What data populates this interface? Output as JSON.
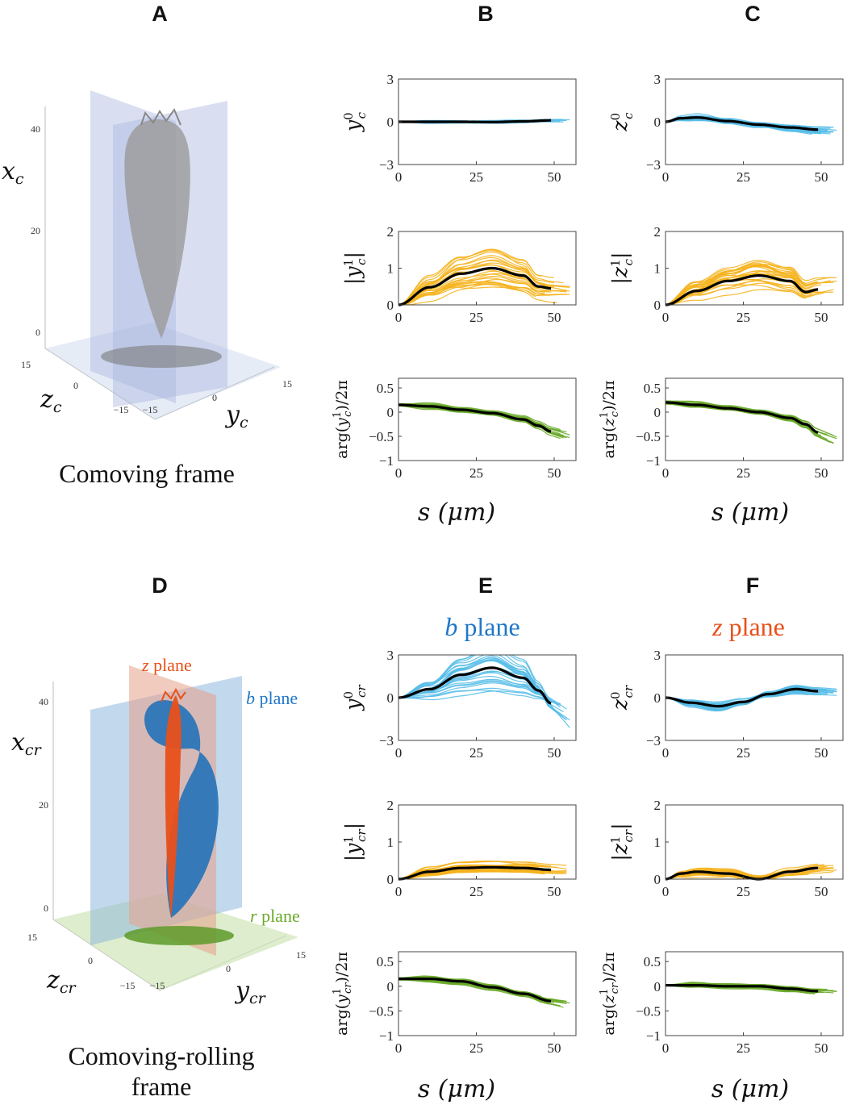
{
  "colors": {
    "mode0": "#57bde8",
    "amp": "#f5b21d",
    "phase": "#6aaa2a",
    "mean": "#000000",
    "b_plane": "#1f77c8",
    "z_plane": "#e8501a",
    "r_plane": "#6aaa2a",
    "body_gray": "#9a9a9a"
  },
  "panels": {
    "A": {
      "letter": "A",
      "caption": "Comoving frame",
      "x_label": "x_c",
      "z_label": "z_c",
      "y_label": "y_c",
      "x_ticks": [
        "40",
        "20",
        "0"
      ],
      "z_ticks": [
        "15",
        "0",
        "−15"
      ],
      "y_ticks": [
        "−15",
        "0",
        "15"
      ]
    },
    "B": {
      "letter": "B",
      "xlabel": "s (μm)"
    },
    "C": {
      "letter": "C",
      "xlabel": "s (μm)"
    },
    "D": {
      "letter": "D",
      "caption_line1": "Comoving-rolling",
      "caption_line2": "frame",
      "x_label": "x_cr",
      "z_label": "z_cr",
      "y_label": "y_cr",
      "x_ticks": [
        "40",
        "20",
        "0"
      ],
      "z_ticks": [
        "15",
        "0",
        "−15"
      ],
      "y_ticks": [
        "−15",
        "0",
        "15"
      ],
      "plane_labels": {
        "z": {
          "sym": "z",
          "word": " plane"
        },
        "b": {
          "sym": "b",
          "word": " plane"
        },
        "r": {
          "sym": "r",
          "word": " plane"
        }
      }
    },
    "E": {
      "letter": "E",
      "title_sym": "b",
      "title_word": " plane",
      "xlabel": "s (μm)"
    },
    "F": {
      "letter": "F",
      "title_sym": "z",
      "title_word": " plane",
      "xlabel": "s (μm)"
    }
  },
  "chart_data": [
    {
      "id": "B0",
      "type": "line",
      "ylabel_base": "y",
      "ylabel_sub": "c",
      "ylabel_sup": "0",
      "ylabel_kind": "plain",
      "color": "mode0",
      "xlim": [
        0,
        57
      ],
      "ylim": [
        -3,
        3
      ],
      "xticks": [
        0,
        25,
        50
      ],
      "yticks": [
        -3,
        0,
        3
      ],
      "spread": 0.12,
      "mean": {
        "x": [
          0,
          10,
          20,
          30,
          40,
          49
        ],
        "y": [
          0,
          0,
          0,
          -0.02,
          0.03,
          0.1
        ]
      }
    },
    {
      "id": "B1",
      "type": "line",
      "ylabel_base": "y",
      "ylabel_sub": "c",
      "ylabel_sup": "1",
      "ylabel_kind": "abs",
      "color": "amp",
      "xlim": [
        0,
        57
      ],
      "ylim": [
        0,
        2
      ],
      "xticks": [
        0,
        25,
        50
      ],
      "yticks": [
        0,
        1,
        2
      ],
      "spread": 0.22,
      "mean": {
        "x": [
          0,
          10,
          20,
          30,
          40,
          45,
          49
        ],
        "y": [
          0,
          0.48,
          0.85,
          1.0,
          0.8,
          0.5,
          0.45
        ]
      }
    },
    {
      "id": "B2",
      "type": "line",
      "ylabel_base": "y",
      "ylabel_sub": "c",
      "ylabel_sup": "1",
      "ylabel_kind": "arg",
      "color": "phase",
      "xlim": [
        0,
        57
      ],
      "ylim": [
        -1,
        0.7
      ],
      "xticks": [
        0,
        25,
        50
      ],
      "yticks": [
        -1,
        -0.5,
        0,
        0.5
      ],
      "spread": 0.07,
      "mean": {
        "x": [
          0,
          10,
          20,
          30,
          40,
          45,
          49
        ],
        "y": [
          0.15,
          0.12,
          0.05,
          -0.02,
          -0.15,
          -0.28,
          -0.4
        ]
      }
    },
    {
      "id": "C0",
      "type": "line",
      "ylabel_base": "z",
      "ylabel_sub": "c",
      "ylabel_sup": "0",
      "ylabel_kind": "plain",
      "color": "mode0",
      "xlim": [
        0,
        57
      ],
      "ylim": [
        -3,
        3
      ],
      "xticks": [
        0,
        25,
        50
      ],
      "yticks": [
        -3,
        0,
        3
      ],
      "spread": 0.22,
      "mean": {
        "x": [
          0,
          5,
          10,
          20,
          30,
          40,
          49
        ],
        "y": [
          0,
          0.25,
          0.3,
          0.05,
          -0.2,
          -0.4,
          -0.55
        ]
      }
    },
    {
      "id": "C1",
      "type": "line",
      "ylabel_base": "z",
      "ylabel_sub": "c",
      "ylabel_sup": "1",
      "ylabel_kind": "abs",
      "color": "amp",
      "xlim": [
        0,
        57
      ],
      "ylim": [
        0,
        2
      ],
      "xticks": [
        0,
        25,
        50
      ],
      "yticks": [
        0,
        1,
        2
      ],
      "spread": 0.24,
      "mean": {
        "x": [
          0,
          10,
          20,
          30,
          40,
          45,
          49
        ],
        "y": [
          0,
          0.38,
          0.65,
          0.8,
          0.65,
          0.35,
          0.42
        ]
      }
    },
    {
      "id": "C2",
      "type": "line",
      "ylabel_base": "z",
      "ylabel_sub": "c",
      "ylabel_sup": "1",
      "ylabel_kind": "arg",
      "color": "phase",
      "xlim": [
        0,
        57
      ],
      "ylim": [
        -1,
        0.7
      ],
      "xticks": [
        0,
        25,
        50
      ],
      "yticks": [
        -1,
        -0.5,
        0,
        0.5
      ],
      "spread": 0.08,
      "mean": {
        "x": [
          0,
          10,
          20,
          30,
          40,
          45,
          49
        ],
        "y": [
          0.2,
          0.15,
          0.08,
          0,
          -0.12,
          -0.25,
          -0.42
        ]
      }
    },
    {
      "id": "E0",
      "type": "line",
      "ylabel_base": "y",
      "ylabel_sub": "cr",
      "ylabel_sup": "0",
      "ylabel_kind": "plain",
      "color": "mode0",
      "xlim": [
        0,
        57
      ],
      "ylim": [
        -3,
        3
      ],
      "xticks": [
        0,
        25,
        50
      ],
      "yticks": [
        -3,
        0,
        3
      ],
      "spread": 0.38,
      "mean": {
        "x": [
          0,
          10,
          20,
          30,
          40,
          45,
          49
        ],
        "y": [
          0,
          0.6,
          1.6,
          2.1,
          1.4,
          0.5,
          -0.4
        ]
      }
    },
    {
      "id": "E1",
      "type": "line",
      "ylabel_base": "y",
      "ylabel_sub": "cr",
      "ylabel_sup": "1",
      "ylabel_kind": "abs",
      "color": "amp",
      "xlim": [
        0,
        57
      ],
      "ylim": [
        0,
        2
      ],
      "xticks": [
        0,
        25,
        50
      ],
      "yticks": [
        0,
        1,
        2
      ],
      "spread": 0.15,
      "mean": {
        "x": [
          0,
          10,
          20,
          30,
          40,
          49
        ],
        "y": [
          0,
          0.2,
          0.3,
          0.32,
          0.3,
          0.25
        ]
      }
    },
    {
      "id": "E2",
      "type": "line",
      "ylabel_base": "y",
      "ylabel_sub": "cr",
      "ylabel_sup": "1",
      "ylabel_kind": "arg",
      "color": "phase",
      "xlim": [
        0,
        57
      ],
      "ylim": [
        -1,
        0.7
      ],
      "xticks": [
        0,
        25,
        50
      ],
      "yticks": [
        -1,
        -0.5,
        0,
        0.5
      ],
      "spread": 0.08,
      "mean": {
        "x": [
          0,
          10,
          20,
          30,
          40,
          49
        ],
        "y": [
          0.15,
          0.15,
          0.1,
          -0.02,
          -0.15,
          -0.3
        ]
      }
    },
    {
      "id": "F0",
      "type": "line",
      "ylabel_base": "z",
      "ylabel_sub": "cr",
      "ylabel_sup": "0",
      "ylabel_kind": "plain",
      "color": "mode0",
      "xlim": [
        0,
        57
      ],
      "ylim": [
        -3,
        3
      ],
      "xticks": [
        0,
        25,
        50
      ],
      "yticks": [
        -3,
        0,
        3
      ],
      "spread": 0.22,
      "mean": {
        "x": [
          0,
          8,
          17,
          25,
          33,
          42,
          49
        ],
        "y": [
          0,
          -0.35,
          -0.6,
          -0.3,
          0.25,
          0.6,
          0.45
        ]
      }
    },
    {
      "id": "F1",
      "type": "line",
      "ylabel_base": "z",
      "ylabel_sub": "cr",
      "ylabel_sup": "1",
      "ylabel_kind": "abs",
      "color": "amp",
      "xlim": [
        0,
        57
      ],
      "ylim": [
        0,
        2
      ],
      "xticks": [
        0,
        25,
        50
      ],
      "yticks": [
        0,
        1,
        2
      ],
      "spread": 0.13,
      "mean": {
        "x": [
          0,
          5,
          10,
          20,
          30,
          40,
          49
        ],
        "y": [
          0,
          0.15,
          0.2,
          0.15,
          0,
          0.2,
          0.3
        ]
      }
    },
    {
      "id": "F2",
      "type": "line",
      "ylabel_base": "z",
      "ylabel_sub": "cr",
      "ylabel_sup": "1",
      "ylabel_kind": "arg",
      "color": "phase",
      "xlim": [
        0,
        57
      ],
      "ylim": [
        -1,
        0.7
      ],
      "xticks": [
        0,
        25,
        50
      ],
      "yticks": [
        -1,
        -0.5,
        0,
        0.5
      ],
      "spread": 0.08,
      "mean": {
        "x": [
          0,
          10,
          20,
          30,
          40,
          49
        ],
        "y": [
          0.02,
          0.02,
          0,
          0,
          -0.05,
          -0.1
        ]
      }
    }
  ]
}
